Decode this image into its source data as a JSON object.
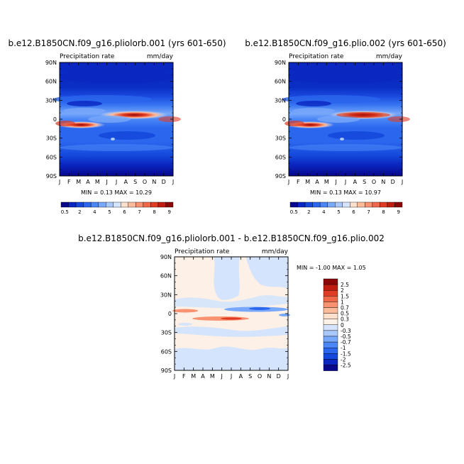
{
  "chart_data": [
    {
      "type": "heatmap",
      "title": "b.e12.B1850CN.f09_g16.pliolorb.001 (yrs 601-650)",
      "subtitle_left": "Precipitation rate",
      "subtitle_right": "mm/day",
      "y_ticks": [
        "90N",
        "60N",
        "30N",
        "0",
        "30S",
        "60S",
        "90S"
      ],
      "x_ticks": [
        "J",
        "F",
        "M",
        "A",
        "M",
        "J",
        "J",
        "A",
        "S",
        "O",
        "N",
        "D",
        "J"
      ],
      "stats": "MIN =   0.13 MAX =  10.29",
      "colorbar_labels": [
        "0.5",
        "2",
        "4",
        "5",
        "6",
        "7",
        "8",
        "9"
      ],
      "colors": [
        "#08088c",
        "#0a26c0",
        "#1448dc",
        "#2a66ee",
        "#4a86f6",
        "#78a8fa",
        "#a8c8fc",
        "#d4e4fc",
        "#fce0cc",
        "#fcbc9c",
        "#f89270",
        "#f06848",
        "#e03c24",
        "#c01c10",
        "#8c0808"
      ]
    },
    {
      "type": "heatmap",
      "title": "b.e12.B1850CN.f09_g16.plio.002 (yrs 601-650)",
      "subtitle_left": "Precipitation rate",
      "subtitle_right": "mm/day",
      "y_ticks": [
        "90N",
        "60N",
        "30N",
        "0",
        "30S",
        "60S",
        "90S"
      ],
      "x_ticks": [
        "J",
        "F",
        "M",
        "A",
        "M",
        "J",
        "J",
        "A",
        "S",
        "O",
        "N",
        "D",
        "J"
      ],
      "stats": "MIN =   0.13 MAX =  10.97",
      "colorbar_labels": [
        "0.5",
        "2",
        "4",
        "5",
        "6",
        "7",
        "8",
        "9"
      ]
    },
    {
      "type": "heatmap",
      "title": "b.e12.B1850CN.f09_g16.pliolorb.001 - b.e12.B1850CN.f09_g16.plio.002",
      "subtitle_left": "Precipitation rate",
      "subtitle_right": "mm/day",
      "y_ticks": [
        "90N",
        "60N",
        "30N",
        "0",
        "30S",
        "60S",
        "90S"
      ],
      "x_ticks": [
        "J",
        "F",
        "M",
        "A",
        "M",
        "J",
        "J",
        "A",
        "S",
        "O",
        "N",
        "D",
        "J"
      ],
      "stats": "MIN =  -1.00 MAX =   1.05",
      "colorbar_labels": [
        "2.5",
        "2",
        "1.5",
        "1",
        "0.7",
        "0.5",
        "0.3",
        "0",
        "-0.3",
        "-0.5",
        "-0.7",
        "-1",
        "-1.5",
        "-2",
        "-2.5"
      ],
      "colors": [
        "#8c0808",
        "#c01c10",
        "#e03c24",
        "#f06848",
        "#f89270",
        "#fcbc9c",
        "#fce0cc",
        "#fdf0e6",
        "#d4e4fc",
        "#a8c8fc",
        "#78a8fa",
        "#4a86f6",
        "#2a66ee",
        "#1448dc",
        "#0a26c0",
        "#08088c"
      ]
    }
  ]
}
